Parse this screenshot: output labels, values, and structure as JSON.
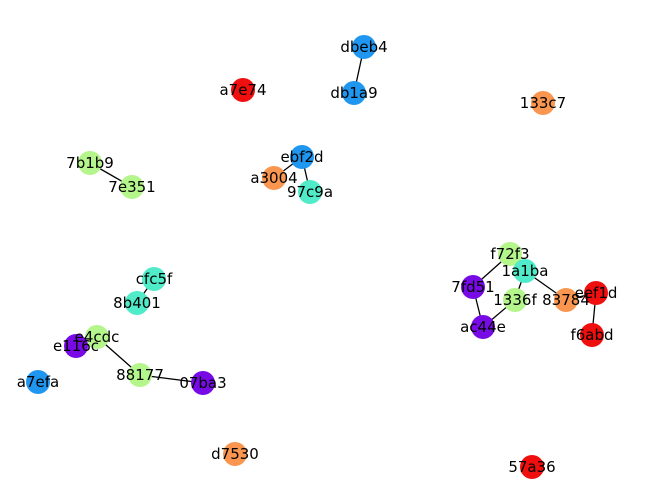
{
  "graph": {
    "nodes": [
      {
        "id": "dbeb4",
        "label": "dbeb4",
        "color": "#1f96f0"
      },
      {
        "id": "db1a9",
        "label": "db1a9",
        "color": "#1f96f0"
      },
      {
        "id": "a7e74",
        "label": "a7e74",
        "color": "#f00f0f"
      },
      {
        "id": "133c7",
        "label": "133c7",
        "color": "#fa9650"
      },
      {
        "id": "ebf2d",
        "label": "ebf2d",
        "color": "#1f96f0"
      },
      {
        "id": "a3004",
        "label": "a3004",
        "color": "#fa9650"
      },
      {
        "id": "97c9a",
        "label": "97c9a",
        "color": "#50ebc8"
      },
      {
        "id": "7b1b9",
        "label": "7b1b9",
        "color": "#b4f58c"
      },
      {
        "id": "7e351",
        "label": "7e351",
        "color": "#b4f58c"
      },
      {
        "id": "cfc5f",
        "label": "cfc5f",
        "color": "#50ebc8"
      },
      {
        "id": "8b401",
        "label": "8b401",
        "color": "#50ebc8"
      },
      {
        "id": "e4cdc",
        "label": "e4cdc",
        "color": "#b4f58c"
      },
      {
        "id": "e116c",
        "label": "e116c",
        "color": "#780ae6"
      },
      {
        "id": "88177",
        "label": "88177",
        "color": "#b4f58c"
      },
      {
        "id": "07ba3",
        "label": "07ba3",
        "color": "#780ae6"
      },
      {
        "id": "a7efa",
        "label": "a7efa",
        "color": "#1f96f0"
      },
      {
        "id": "d7530",
        "label": "d7530",
        "color": "#fa9650"
      },
      {
        "id": "f72f3",
        "label": "f72f3",
        "color": "#b4f58c"
      },
      {
        "id": "1a1ba",
        "label": "1a1ba",
        "color": "#50ebc8"
      },
      {
        "id": "7fd51",
        "label": "7fd51",
        "color": "#780ae6"
      },
      {
        "id": "1336f",
        "label": "1336f",
        "color": "#b4f58c"
      },
      {
        "id": "83784",
        "label": "83784",
        "color": "#fa9650"
      },
      {
        "id": "eef1d",
        "label": "eef1d",
        "color": "#f00f0f"
      },
      {
        "id": "ac44e",
        "label": "ac44e",
        "color": "#780ae6"
      },
      {
        "id": "f6abd",
        "label": "f6abd",
        "color": "#f00f0f"
      },
      {
        "id": "57a36",
        "label": "57a36",
        "color": "#f00f0f"
      }
    ],
    "edges": [
      [
        "dbeb4",
        "db1a9"
      ],
      [
        "ebf2d",
        "a3004"
      ],
      [
        "ebf2d",
        "97c9a"
      ],
      [
        "7b1b9",
        "7e351"
      ],
      [
        "cfc5f",
        "8b401"
      ],
      [
        "e4cdc",
        "e116c"
      ],
      [
        "e4cdc",
        "88177"
      ],
      [
        "88177",
        "07ba3"
      ],
      [
        "f72f3",
        "7fd51"
      ],
      [
        "f72f3",
        "1a1ba"
      ],
      [
        "1a1ba",
        "1336f"
      ],
      [
        "1a1ba",
        "83784"
      ],
      [
        "7fd51",
        "ac44e"
      ],
      [
        "1336f",
        "ac44e"
      ],
      [
        "83784",
        "eef1d"
      ],
      [
        "eef1d",
        "f6abd"
      ]
    ]
  }
}
